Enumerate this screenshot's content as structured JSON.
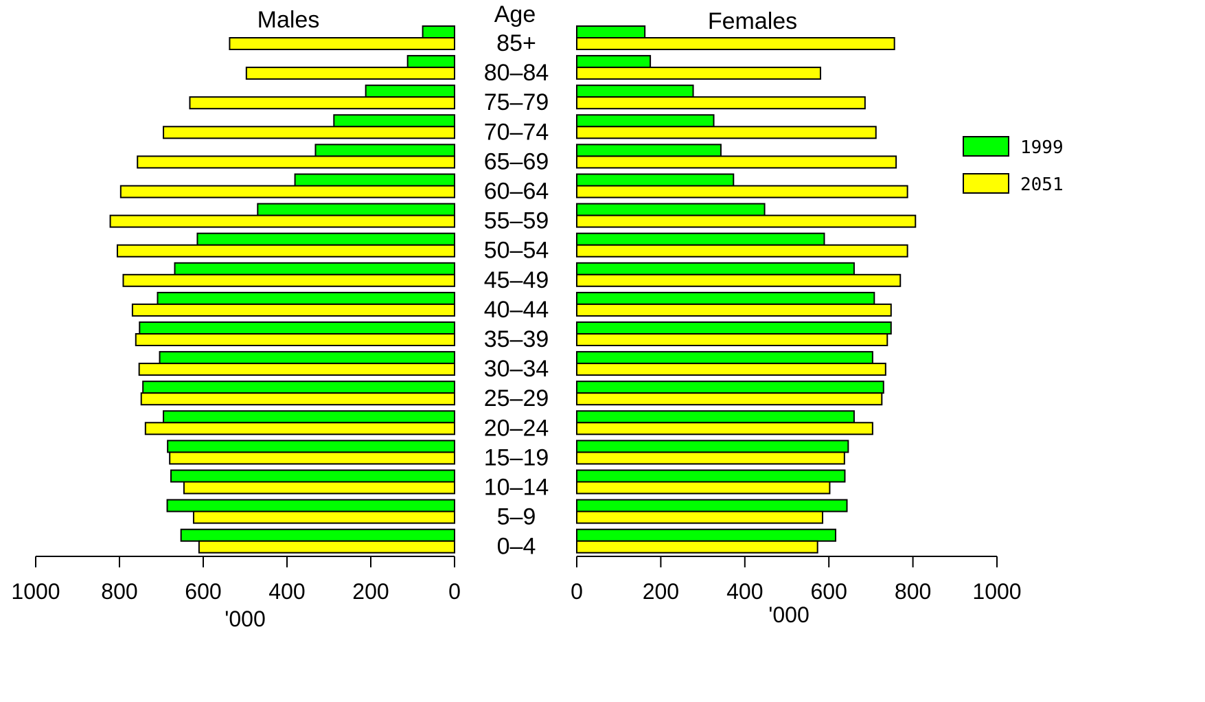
{
  "chart_data": {
    "type": "bar",
    "orientation": "horizontal",
    "layout": "population-pyramid",
    "left_title": "Males",
    "center_title": "Age",
    "right_title": "Females",
    "left_xlabel": "'000",
    "right_xlabel": "'000",
    "xlim": [
      0,
      1000
    ],
    "x_ticks": [
      0,
      200,
      400,
      600,
      800,
      1000
    ],
    "legend_placement": "right",
    "grid": false,
    "categories": [
      "85+",
      "80–84",
      "75–79",
      "70–74",
      "65–69",
      "60–64",
      "55–59",
      "50–54",
      "45–49",
      "40–44",
      "35–39",
      "30–34",
      "25–29",
      "20–24",
      "15–19",
      "10–14",
      "5–9",
      "0–4"
    ],
    "series": [
      {
        "name": "1999",
        "color": "#00ff00",
        "males": [
          76,
          112,
          212,
          288,
          332,
          381,
          470,
          614,
          668,
          709,
          752,
          704,
          744,
          695,
          685,
          677,
          686,
          653
        ],
        "females": [
          162,
          175,
          277,
          326,
          343,
          373,
          447,
          589,
          660,
          708,
          748,
          704,
          730,
          660,
          646,
          638,
          643,
          616
        ]
      },
      {
        "name": "2051",
        "color": "#ffff00",
        "males": [
          537,
          497,
          632,
          695,
          757,
          797,
          822,
          805,
          791,
          769,
          761,
          753,
          748,
          738,
          680,
          646,
          623,
          610
        ],
        "females": [
          756,
          580,
          686,
          712,
          760,
          787,
          806,
          787,
          770,
          748,
          739,
          735,
          726,
          704,
          637,
          602,
          585,
          573
        ]
      }
    ]
  }
}
